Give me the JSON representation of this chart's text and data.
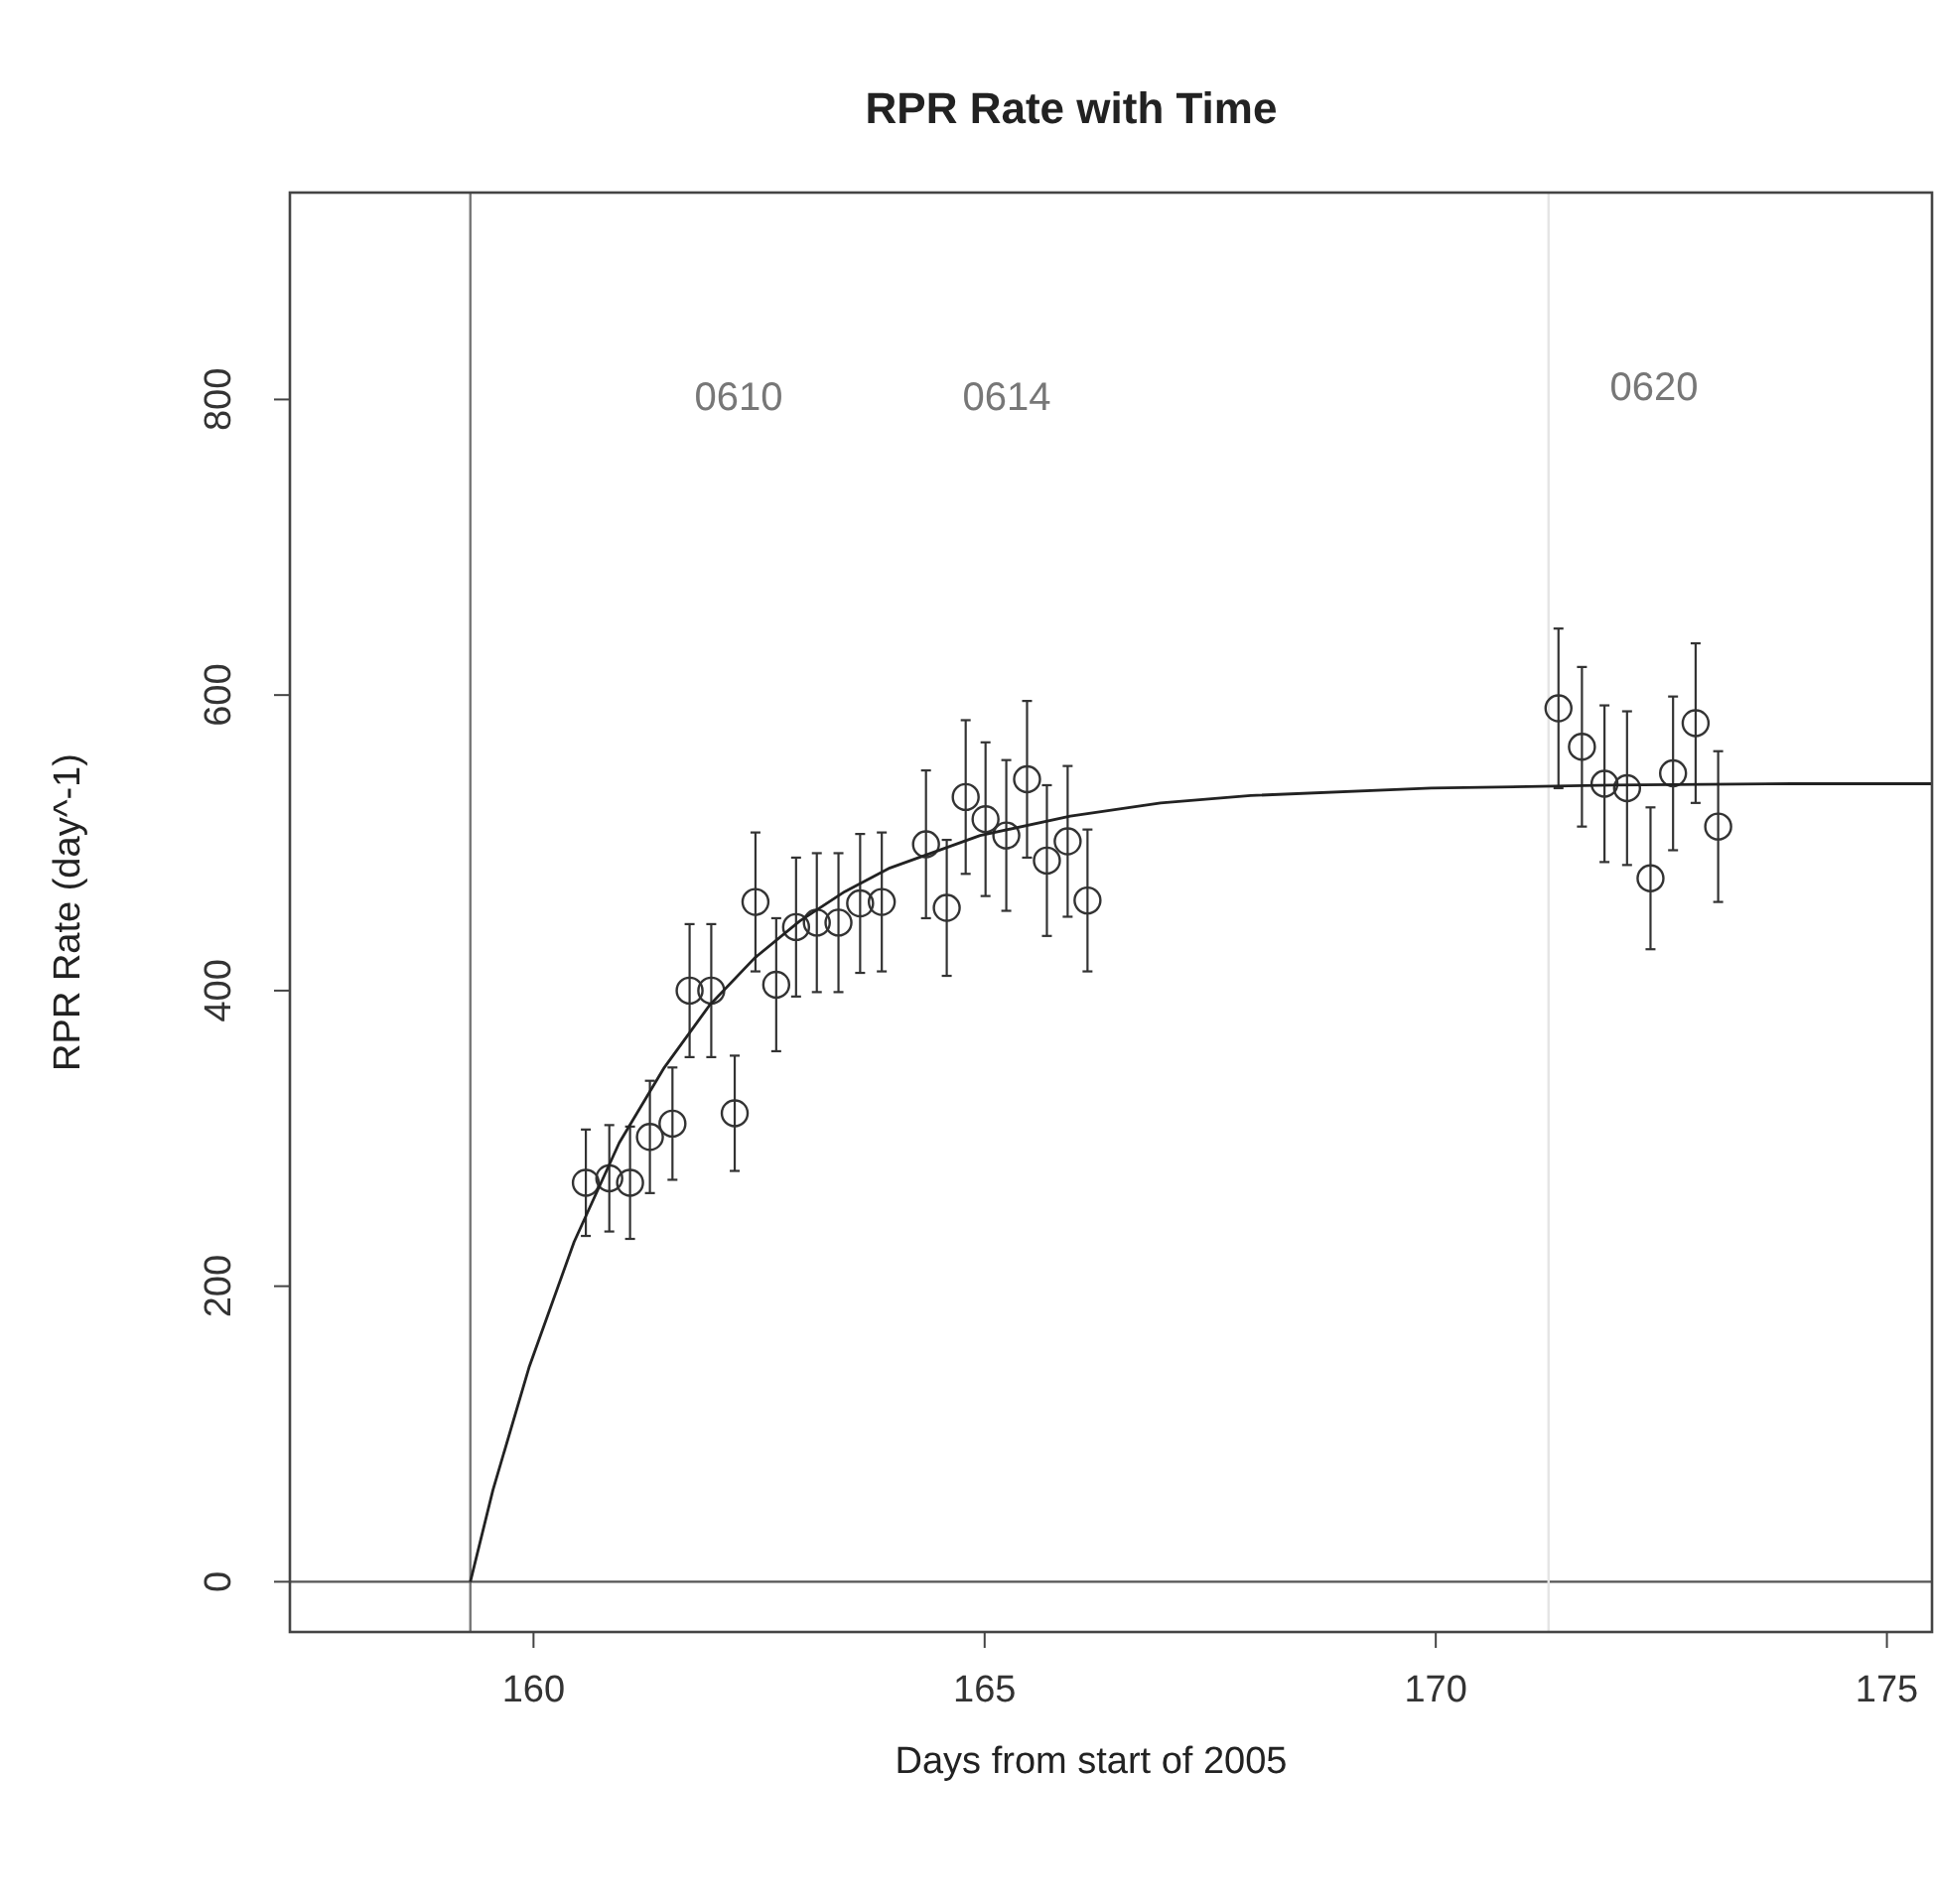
{
  "chart_data": {
    "type": "scatter",
    "title": "RPR Rate with Time",
    "xlabel": "Days from start of 2005",
    "ylabel": "RPR Rate (day^-1)",
    "xlim": [
      157.3,
      175.5
    ],
    "ylim": [
      -34,
      940
    ],
    "xticks": [
      160,
      165,
      170,
      175
    ],
    "yticks": [
      0,
      200,
      400,
      600,
      800
    ],
    "grid": false,
    "series": [
      {
        "color": "#333333",
        "marker": "circle",
        "x": [
          160.58,
          160.84,
          161.07,
          161.29,
          161.54,
          161.73,
          161.97,
          162.23,
          162.46,
          162.69,
          162.91,
          163.14,
          163.38,
          163.62,
          163.86,
          164.35,
          164.58,
          164.79,
          165.01,
          165.24,
          165.47,
          165.69,
          165.92,
          166.14,
          171.36,
          171.62,
          171.87,
          172.12,
          172.38,
          172.63,
          172.88,
          173.13
        ],
        "values": [
          270,
          273,
          270,
          301,
          310,
          400,
          400,
          317,
          460,
          404,
          443,
          446,
          446,
          459,
          460,
          499,
          456,
          531,
          516,
          505,
          543,
          488,
          501,
          461,
          591,
          565,
          540,
          537,
          476,
          547,
          581,
          511
        ],
        "errors": [
          36,
          36,
          38,
          38,
          38,
          45,
          45,
          39,
          47,
          45,
          47,
          47,
          47,
          47,
          47,
          50,
          46,
          52,
          52,
          51,
          53,
          51,
          51,
          48,
          54,
          54,
          53,
          52,
          48,
          52,
          54,
          51
        ]
      },
      {
        "type": "line",
        "color": "#222222",
        "line_style": "solid",
        "marker": "none",
        "x": [
          159.3,
          159.55,
          159.95,
          160.45,
          160.95,
          161.45,
          161.95,
          162.45,
          162.95,
          163.45,
          163.95,
          164.95,
          165.95,
          166.95,
          167.95,
          169.95,
          171.95,
          173.95,
          175.5
        ],
        "values": [
          0,
          62,
          145,
          230,
          297,
          348,
          390,
          422,
          447,
          467,
          483,
          505,
          518,
          527,
          532,
          537,
          539,
          540,
          540
        ]
      }
    ],
    "ref_lines": [
      {
        "axis": "x",
        "value": 159.3,
        "color": "#777777"
      },
      {
        "axis": "y",
        "value": 0,
        "color": "#555555"
      },
      {
        "axis": "x",
        "value": 171.25,
        "color": "#e4e4e4"
      }
    ],
    "annotations": [
      "0610",
      "0614",
      "0620"
    ]
  }
}
